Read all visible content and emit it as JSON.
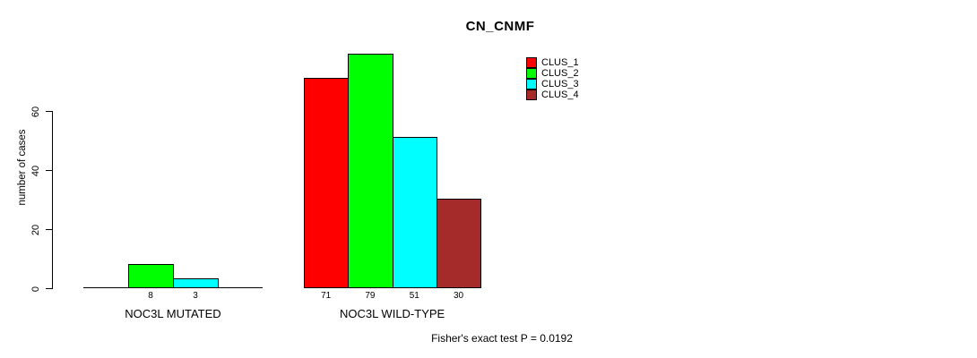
{
  "chart_data": {
    "type": "bar",
    "title": "CN_CNMF",
    "ylabel": "number of cases",
    "xlabel": "",
    "ylim": [
      0,
      80
    ],
    "yticks": [
      0,
      20,
      40,
      60
    ],
    "grid": false,
    "legend_position": "top-right",
    "categories": [
      "NOC3L MUTATED",
      "NOC3L WILD-TYPE"
    ],
    "series": [
      {
        "name": "CLUS_1",
        "color": "#ff0000",
        "values": [
          0,
          71
        ]
      },
      {
        "name": "CLUS_2",
        "color": "#00ff00",
        "values": [
          8,
          79
        ]
      },
      {
        "name": "CLUS_3",
        "color": "#00ffff",
        "values": [
          3,
          51
        ]
      },
      {
        "name": "CLUS_4",
        "color": "#a52a2a",
        "values": [
          0,
          30
        ]
      }
    ],
    "bar_value_labels": [
      [
        "",
        "8",
        "3",
        ""
      ],
      [
        "71",
        "79",
        "51",
        "30"
      ]
    ],
    "annotation": "Fisher's exact test P = 0.0192"
  }
}
